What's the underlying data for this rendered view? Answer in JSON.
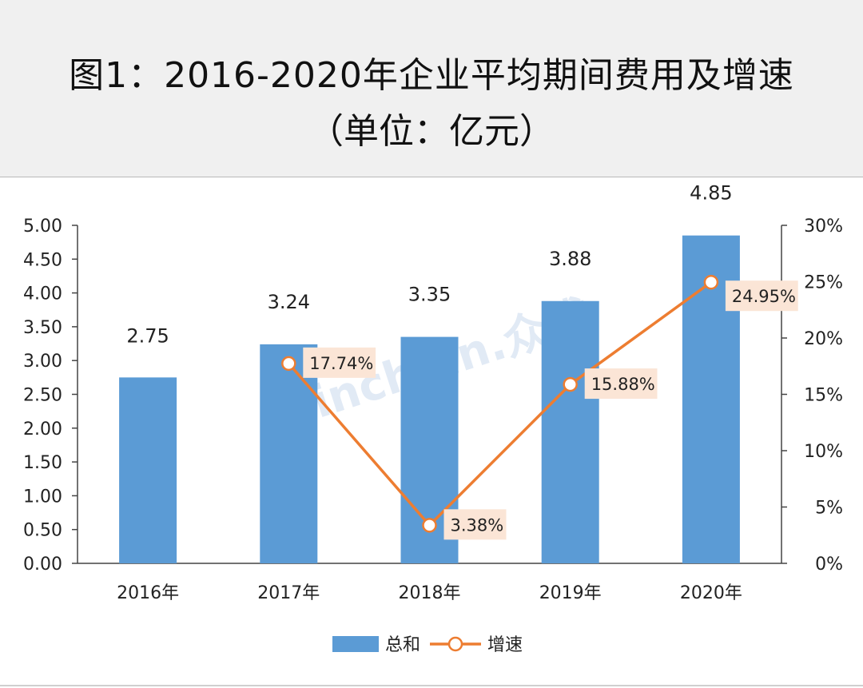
{
  "header": {
    "title_line1": "图1：2016-2020年企业平均期间费用及增速",
    "title_line2": "（单位：亿元）"
  },
  "watermark": "Joinchain.众成",
  "chart_data": {
    "type": "bar",
    "categories": [
      "2016年",
      "2017年",
      "2018年",
      "2019年",
      "2020年"
    ],
    "series": [
      {
        "name": "总和",
        "type": "bar",
        "axis": "left",
        "color": "#5b9bd5",
        "values": [
          2.75,
          3.24,
          3.35,
          3.88,
          4.85
        ],
        "labels": [
          "2.75",
          "3.24",
          "3.35",
          "3.88",
          "4.85"
        ]
      },
      {
        "name": "增速",
        "type": "line",
        "axis": "right",
        "color": "#ed7d31",
        "values": [
          null,
          17.74,
          3.38,
          15.88,
          24.95
        ],
        "labels": [
          "",
          "17.74%",
          "3.38%",
          "15.88%",
          "24.95%"
        ]
      }
    ],
    "y_left": {
      "min": 0,
      "max": 5,
      "ticks": [
        "0.00",
        "0.50",
        "1.00",
        "1.50",
        "2.00",
        "2.50",
        "3.00",
        "3.50",
        "4.00",
        "4.50",
        "5.00"
      ]
    },
    "y_right": {
      "min": 0,
      "max": 30,
      "ticks": [
        "0%",
        "5%",
        "10%",
        "15%",
        "20%",
        "25%",
        "30%"
      ]
    },
    "legend": {
      "position": "bottom",
      "items": [
        "总和",
        "增速"
      ]
    },
    "label_bg": "#fbe5d6",
    "grid": false
  }
}
